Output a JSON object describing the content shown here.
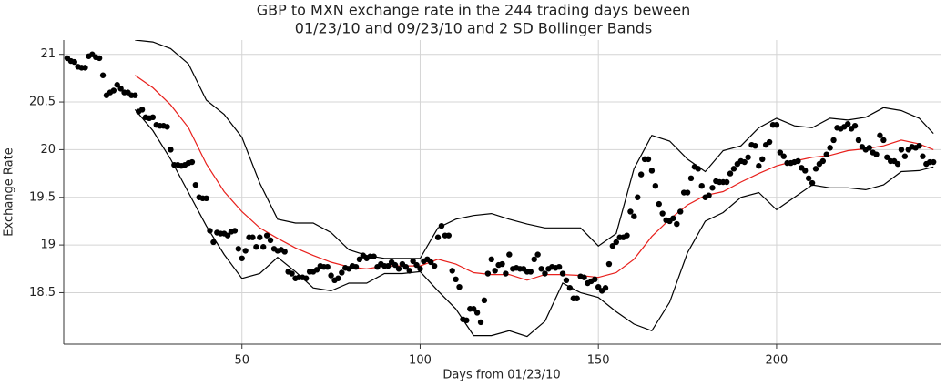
{
  "chart_data": {
    "type": "scatter",
    "title": [
      "GBP to MXN exchange rate in the 244 trading days beween",
      "01/23/10 and 09/23/10 and 2 SD Bollinger Bands"
    ],
    "x_label": "Days from 01/23/10",
    "y_label": "Exchange Rate",
    "xlim": [
      0,
      246
    ],
    "ylim": [
      17.96,
      21.15
    ],
    "xticks": [
      50,
      100,
      150,
      200
    ],
    "yticks": [
      {
        "value": 18.5,
        "label": "18.5"
      },
      {
        "value": 19,
        "label": "19"
      },
      {
        "value": 19.5,
        "label": "19.5"
      },
      {
        "value": 20,
        "label": "20"
      },
      {
        "value": 20.5,
        "label": "20.5"
      },
      {
        "value": 21,
        "label": "21"
      }
    ],
    "grid": true,
    "color": "#000000",
    "x": [
      1,
      2,
      3,
      4,
      5,
      6,
      7,
      8,
      9,
      10,
      11,
      12,
      13,
      14,
      15,
      16,
      17,
      18,
      19,
      20,
      21,
      22,
      23,
      24,
      25,
      26,
      27,
      28,
      29,
      30,
      31,
      32,
      33,
      34,
      35,
      36,
      37,
      38,
      39,
      40,
      41,
      42,
      43,
      44,
      45,
      46,
      47,
      48,
      49,
      50,
      51,
      52,
      53,
      54,
      55,
      56,
      57,
      58,
      59,
      60,
      61,
      62,
      63,
      64,
      65,
      66,
      67,
      68,
      69,
      70,
      71,
      72,
      73,
      74,
      75,
      76,
      77,
      78,
      79,
      80,
      81,
      82,
      83,
      84,
      85,
      86,
      87,
      88,
      89,
      90,
      91,
      92,
      93,
      94,
      95,
      96,
      97,
      98,
      99,
      100,
      101,
      102,
      103,
      104,
      105,
      106,
      107,
      108,
      109,
      110,
      111,
      112,
      113,
      114,
      115,
      116,
      117,
      118,
      119,
      120,
      121,
      122,
      123,
      124,
      125,
      126,
      127,
      128,
      129,
      130,
      131,
      132,
      133,
      134,
      135,
      136,
      137,
      138,
      139,
      140,
      141,
      142,
      143,
      144,
      145,
      146,
      147,
      148,
      149,
      150,
      151,
      152,
      153,
      154,
      155,
      156,
      157,
      158,
      159,
      160,
      161,
      162,
      163,
      164,
      165,
      166,
      167,
      168,
      169,
      170,
      171,
      172,
      173,
      174,
      175,
      176,
      177,
      178,
      179,
      180,
      181,
      182,
      183,
      184,
      185,
      186,
      187,
      188,
      189,
      190,
      191,
      192,
      193,
      194,
      195,
      196,
      197,
      198,
      199,
      200,
      201,
      202,
      203,
      204,
      205,
      206,
      207,
      208,
      209,
      210,
      211,
      212,
      213,
      214,
      215,
      216,
      217,
      218,
      219,
      220,
      221,
      222,
      223,
      224,
      225,
      226,
      227,
      228,
      229,
      230,
      231,
      232,
      233,
      234,
      235,
      236,
      237,
      238,
      239,
      240,
      241,
      242,
      243,
      244
    ],
    "values": [
      20.96,
      20.93,
      20.92,
      20.87,
      20.86,
      20.86,
      20.98,
      21.0,
      20.97,
      20.96,
      20.78,
      20.57,
      20.6,
      20.62,
      20.68,
      20.64,
      20.6,
      20.6,
      20.57,
      20.57,
      20.4,
      20.42,
      20.34,
      20.33,
      20.34,
      20.26,
      20.25,
      20.25,
      20.24,
      20.0,
      19.84,
      19.84,
      19.83,
      19.84,
      19.86,
      19.87,
      19.63,
      19.5,
      19.49,
      19.49,
      19.15,
      19.03,
      19.13,
      19.12,
      19.12,
      19.1,
      19.14,
      19.15,
      18.96,
      18.86,
      18.94,
      19.08,
      19.08,
      18.98,
      19.08,
      18.98,
      19.1,
      19.05,
      18.96,
      18.94,
      18.95,
      18.93,
      18.72,
      18.7,
      18.65,
      18.66,
      18.66,
      18.65,
      18.72,
      18.72,
      18.74,
      18.78,
      18.77,
      18.77,
      18.68,
      18.63,
      18.65,
      18.71,
      18.76,
      18.75,
      18.78,
      18.77,
      18.85,
      18.89,
      18.86,
      18.88,
      18.88,
      18.77,
      18.8,
      18.78,
      18.78,
      18.82,
      18.79,
      18.75,
      18.8,
      18.77,
      18.73,
      18.83,
      18.79,
      18.75,
      18.83,
      18.85,
      18.82,
      18.78,
      19.08,
      19.2,
      19.1,
      19.1,
      18.73,
      18.64,
      18.56,
      18.22,
      18.21,
      18.33,
      18.33,
      18.29,
      18.19,
      18.42,
      18.7,
      18.85,
      18.73,
      18.79,
      18.8,
      18.7,
      18.9,
      18.75,
      18.76,
      18.75,
      18.75,
      18.72,
      18.72,
      18.85,
      18.9,
      18.75,
      18.7,
      18.75,
      18.77,
      18.76,
      18.77,
      18.7,
      18.63,
      18.55,
      18.44,
      18.44,
      18.67,
      18.66,
      18.6,
      18.62,
      18.64,
      18.56,
      18.52,
      18.55,
      18.8,
      18.99,
      19.03,
      19.08,
      19.08,
      19.1,
      19.35,
      19.3,
      19.5,
      19.74,
      19.9,
      19.9,
      19.78,
      19.62,
      19.43,
      19.33,
      19.26,
      19.25,
      19.28,
      19.22,
      19.35,
      19.55,
      19.55,
      19.7,
      19.82,
      19.8,
      19.62,
      19.5,
      19.52,
      19.6,
      19.67,
      19.66,
      19.66,
      19.66,
      19.75,
      19.8,
      19.85,
      19.88,
      19.87,
      19.92,
      20.05,
      20.04,
      19.83,
      19.9,
      20.05,
      20.08,
      20.26,
      20.26,
      19.97,
      19.93,
      19.86,
      19.86,
      19.87,
      19.88,
      19.81,
      19.78,
      19.7,
      19.65,
      19.8,
      19.85,
      19.88,
      19.95,
      20.02,
      20.1,
      20.23,
      20.22,
      20.24,
      20.27,
      20.22,
      20.25,
      20.1,
      20.03,
      20.0,
      20.02,
      19.97,
      19.95,
      20.15,
      20.1,
      19.92,
      19.88,
      19.88,
      19.85,
      20.0,
      19.93,
      20.0,
      20.03,
      20.02,
      20.04,
      19.93,
      19.85,
      19.87,
      19.87
    ],
    "band_x": [
      20,
      25,
      30,
      35,
      40,
      45,
      50,
      55,
      60,
      65,
      70,
      75,
      80,
      85,
      90,
      95,
      100,
      105,
      110,
      115,
      120,
      125,
      130,
      135,
      140,
      145,
      150,
      155,
      160,
      165,
      170,
      175,
      180,
      185,
      190,
      195,
      200,
      205,
      210,
      215,
      220,
      225,
      230,
      235,
      240,
      244
    ],
    "lines": [
      {
        "color": "#e8201c",
        "values": [
          20.78,
          20.65,
          20.47,
          20.23,
          19.85,
          19.56,
          19.35,
          19.18,
          19.07,
          18.97,
          18.89,
          18.82,
          18.77,
          18.75,
          18.78,
          18.78,
          18.78,
          18.85,
          18.8,
          18.71,
          18.69,
          18.69,
          18.63,
          18.69,
          18.69,
          18.68,
          18.66,
          18.71,
          18.85,
          19.09,
          19.27,
          19.42,
          19.52,
          19.56,
          19.66,
          19.75,
          19.83,
          19.88,
          19.92,
          19.94,
          19.99,
          20.01,
          20.04,
          20.1,
          20.06,
          20.0
        ]
      },
      {
        "color": "#000000",
        "values": [
          21.15,
          21.13,
          21.06,
          20.9,
          20.52,
          20.37,
          20.13,
          19.65,
          19.27,
          19.23,
          19.23,
          19.13,
          18.95,
          18.89,
          18.86,
          18.86,
          18.86,
          19.18,
          19.27,
          19.31,
          19.33,
          19.27,
          19.22,
          19.18,
          19.18,
          19.18,
          18.99,
          19.12,
          19.8,
          20.15,
          20.09,
          19.9,
          19.77,
          19.99,
          20.04,
          20.23,
          20.33,
          20.25,
          20.23,
          20.33,
          20.31,
          20.34,
          20.44,
          20.41,
          20.33,
          20.17
        ]
      },
      {
        "color": "#000000",
        "values": [
          20.42,
          20.2,
          19.9,
          19.55,
          19.2,
          18.9,
          18.65,
          18.7,
          18.87,
          18.72,
          18.55,
          18.52,
          18.6,
          18.6,
          18.7,
          18.7,
          18.72,
          18.52,
          18.33,
          18.05,
          18.05,
          18.1,
          18.04,
          18.2,
          18.6,
          18.5,
          18.45,
          18.3,
          18.17,
          18.1,
          18.4,
          18.92,
          19.25,
          19.34,
          19.5,
          19.55,
          19.37,
          19.5,
          19.63,
          19.6,
          19.6,
          19.58,
          19.63,
          19.77,
          19.78,
          19.82
        ]
      }
    ]
  }
}
